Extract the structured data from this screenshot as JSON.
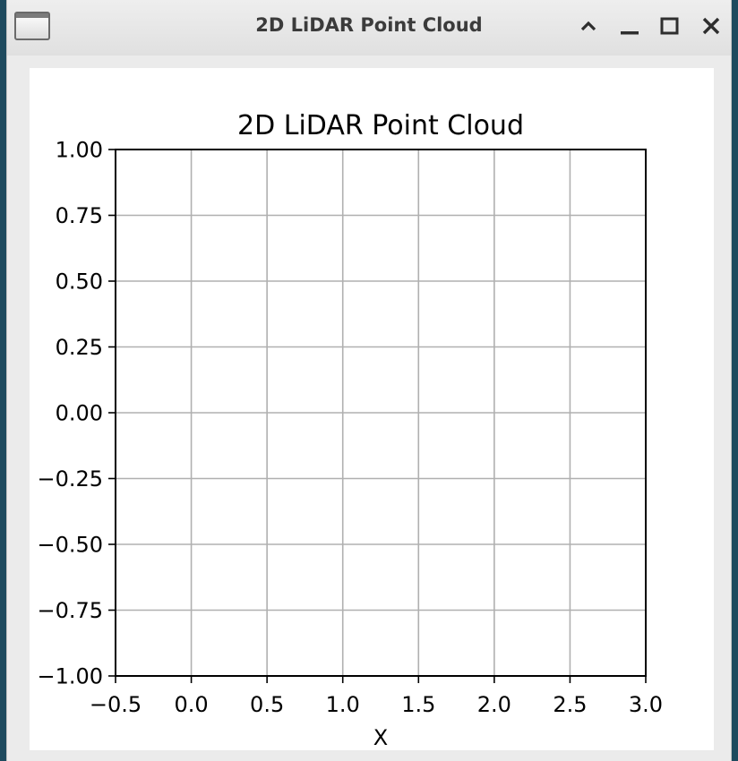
{
  "window": {
    "title": "2D LiDAR Point Cloud",
    "icons": [
      "app-window-icon",
      "chevron-up-icon",
      "minimize-icon",
      "maximize-icon",
      "close-icon"
    ]
  },
  "chart_data": {
    "type": "scatter",
    "title": "2D LiDAR Point Cloud",
    "xlabel": "X",
    "ylabel": "",
    "xlim": [
      -0.5,
      3.0
    ],
    "ylim": [
      -1.0,
      1.0
    ],
    "xticks": [
      -0.5,
      0.0,
      0.5,
      1.0,
      1.5,
      2.0,
      2.5,
      3.0
    ],
    "xtick_labels": [
      "−0.5",
      "0.0",
      "0.5",
      "1.0",
      "1.5",
      "2.0",
      "2.5",
      "3.0"
    ],
    "yticks": [
      1.0,
      0.75,
      0.5,
      0.25,
      0.0,
      -0.25,
      -0.5,
      -0.75,
      -1.0
    ],
    "ytick_labels": [
      "1.00",
      "0.75",
      "0.50",
      "0.25",
      "0.00",
      "−0.25",
      "−0.50",
      "−0.75",
      "−1.00"
    ],
    "grid": true,
    "series": [
      {
        "x": [],
        "y": []
      }
    ]
  }
}
